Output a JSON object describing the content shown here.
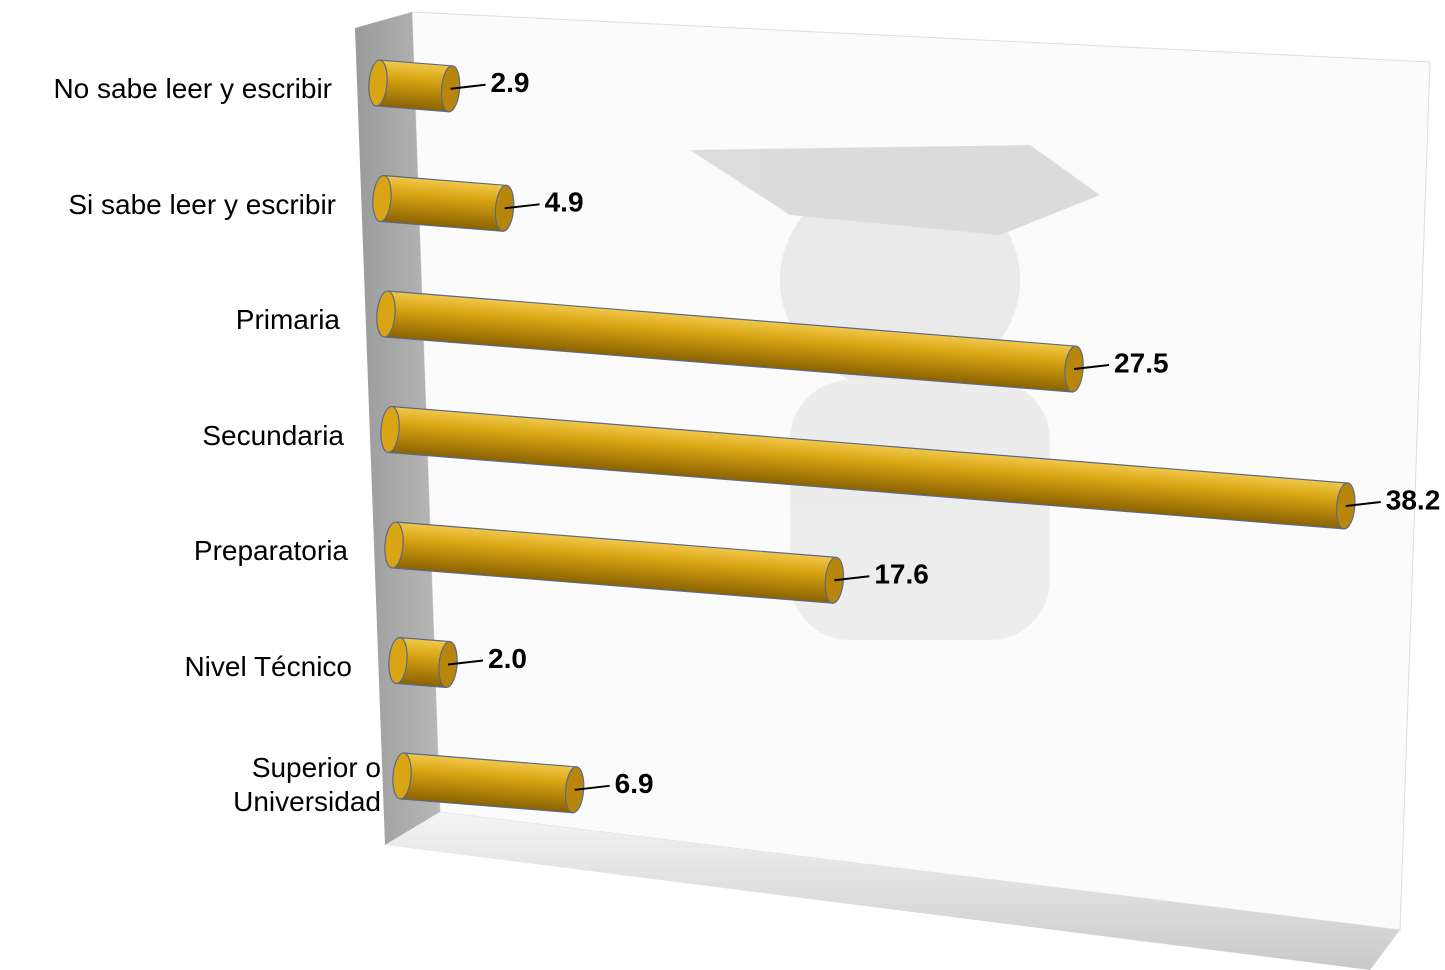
{
  "chart_data": {
    "type": "bar",
    "orientation": "horizontal",
    "categories": [
      "No sabe leer y escribir",
      "Si sabe leer y escribir",
      "Primaria",
      "Secundaria",
      "Preparatoria",
      "Nivel Técnico",
      "Superior o Universidad"
    ],
    "values": [
      2.9,
      4.9,
      27.5,
      38.2,
      17.6,
      2.0,
      6.9
    ],
    "value_labels": [
      "2.9",
      "4.9",
      "27.5",
      "38.2",
      "17.6",
      "2.0",
      "6.9"
    ],
    "color": "#c8960a"
  }
}
